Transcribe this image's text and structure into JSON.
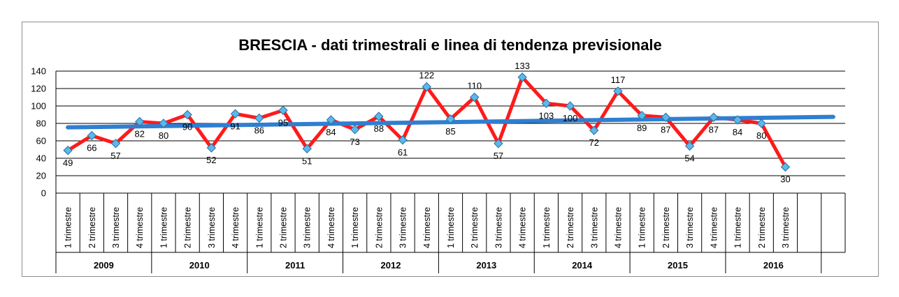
{
  "chart_data": {
    "type": "line",
    "title": "BRESCIA - dati trimestrali e linea di tendenza previsionale",
    "quarter_labels": [
      "1 trimestre",
      "2 trimestre",
      "3 trimestre",
      "4 trimestre"
    ],
    "years": [
      "2009",
      "2010",
      "2011",
      "2012",
      "2013",
      "2014",
      "2015",
      "2016"
    ],
    "categories": [
      "2009 1 trimestre",
      "2009 2 trimestre",
      "2009 3 trimestre",
      "2009 4 trimestre",
      "2010 1 trimestre",
      "2010 2 trimestre",
      "2010 3 trimestre",
      "2010 4 trimestre",
      "2011 1 trimestre",
      "2011 2 trimestre",
      "2011 3 trimestre",
      "2011 4 trimestre",
      "2012 1 trimestre",
      "2012 2 trimestre",
      "2012 3 trimestre",
      "2012 4 trimestre",
      "2013 1 trimestre",
      "2013 2 trimestre",
      "2013 3 trimestre",
      "2013 4 trimestre",
      "2014 1 trimestre",
      "2014 2 trimestre",
      "2014 3 trimestre",
      "2014 4 trimestre",
      "2015 1 trimestre",
      "2015 2 trimestre",
      "2015 3 trimestre",
      "2015 4 trimestre",
      "2016 1 trimestre",
      "2016 2 trimestre",
      "2016 3 trimestre"
    ],
    "series": [
      {
        "values": [
          49,
          66,
          57,
          82,
          80,
          90,
          52,
          91,
          86,
          95,
          51,
          84,
          73,
          88,
          61,
          122,
          85,
          110,
          57,
          133,
          103,
          100,
          72,
          117,
          89,
          87,
          54,
          87,
          84,
          80,
          30
        ],
        "color": "#ff1a1a",
        "marker_color": "#5bb8e8"
      }
    ],
    "trendline": {
      "start": 75.5,
      "end": 87.5,
      "color": "#2f7fd1"
    },
    "ylim": [
      0,
      140
    ],
    "yticks": [
      0,
      20,
      40,
      60,
      80,
      100,
      120,
      140
    ],
    "grid": true,
    "xlabel": "",
    "ylabel": ""
  }
}
